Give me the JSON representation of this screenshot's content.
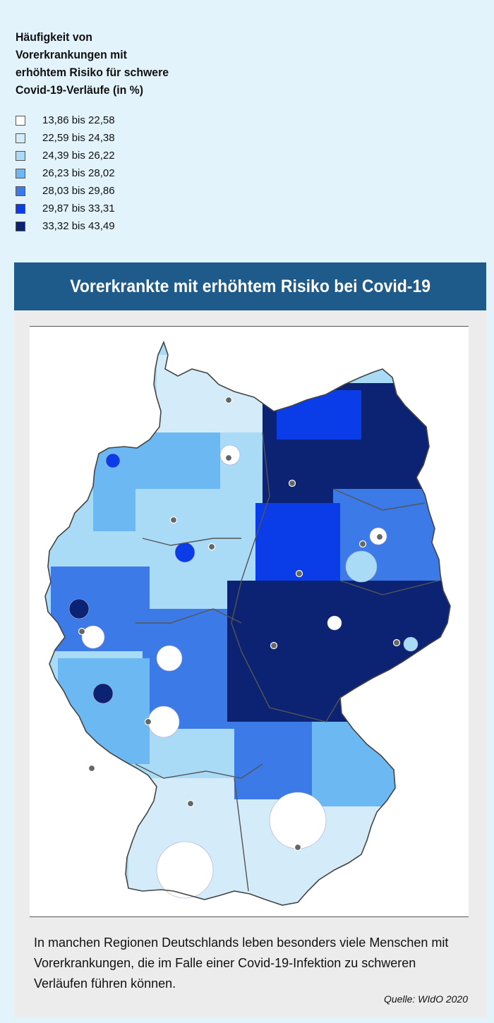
{
  "legend": {
    "title": "Häufigkeit von Vorerkrankungen mit erhöhtem Risiko für schwere Covid-19-Verläufe (in %)",
    "items": [
      {
        "label": "13,86 bis 22,58",
        "color": "#ffffff"
      },
      {
        "label": "22,59 bis 24,38",
        "color": "#d4ecfa"
      },
      {
        "label": "24,39 bis 26,22",
        "color": "#a9dbf7"
      },
      {
        "label": "26,23 bis 28,02",
        "color": "#6cb8f2"
      },
      {
        "label": "28,03 bis 29,86",
        "color": "#3c7ae8"
      },
      {
        "label": "29,87 bis 33,31",
        "color": "#0a3de8"
      },
      {
        "label": "33,32 bis 43,49",
        "color": "#0c2272"
      }
    ]
  },
  "panel": {
    "banner": "Vorerkrankte mit erhöhtem Risiko bei Covid-19",
    "caption": "In manchen Regionen Deutschlands leben besonders viele Menschen mit Vorerkrankungen, die im Falle einer Covid-19-Infektion zu schweren Verläufen führen können.",
    "source": "Quelle: WIdO 2020"
  },
  "colors": {
    "background": "#e3f3fc",
    "banner": "#1e5a8a",
    "panel": "#ececec"
  }
}
